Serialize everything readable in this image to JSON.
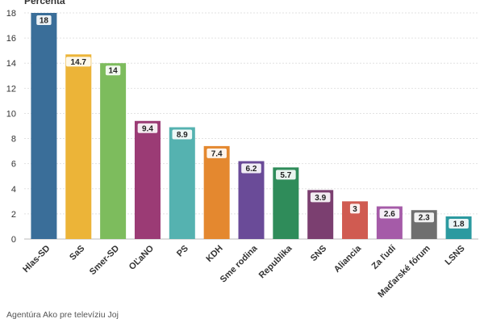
{
  "chart_data": {
    "type": "bar",
    "ylabel": "Percentá",
    "ylim": [
      0,
      18
    ],
    "yticks": [
      "0",
      "2",
      "4",
      "6",
      "8",
      "10",
      "12",
      "14",
      "16",
      "18"
    ],
    "grid": true,
    "categories": [
      "Hlas-SD",
      "SaS",
      "Smer-SD",
      "OĽaNO",
      "PS",
      "KDH",
      "Sme rodina",
      "Republika",
      "SNS",
      "Aliancia",
      "Za ľudí",
      "Maďarské fórum",
      "LSNS"
    ],
    "values": [
      18,
      14.7,
      14,
      9.4,
      8.9,
      7.4,
      6.2,
      5.7,
      3.9,
      3,
      2.6,
      2.3,
      1.8
    ],
    "value_labels": [
      "18",
      "14.7",
      "14",
      "9.4",
      "8.9",
      "7.4",
      "6.2",
      "5.7",
      "3.9",
      "3",
      "2.6",
      "2.3",
      "1.8"
    ],
    "colors": [
      "#3a6e99",
      "#ecb438",
      "#7dbc5d",
      "#9b3b75",
      "#55b2b0",
      "#e4882f",
      "#6a4b98",
      "#2f8c5a",
      "#7b3f70",
      "#d05b51",
      "#a55ba8",
      "#6f6f6f",
      "#2c9aa0"
    ]
  },
  "source": "Agentúra Ako pre televíziu Joj"
}
